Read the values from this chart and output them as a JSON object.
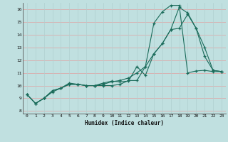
{
  "bg_color": "#c0e0e0",
  "grid_color_h": "#e0a0a0",
  "grid_color_v": "#b0d0d0",
  "line_color": "#1a6b5a",
  "xlabel": "Humidex (Indice chaleur)",
  "xlim": [
    -0.5,
    23.5
  ],
  "ylim": [
    7.8,
    16.5
  ],
  "xticks": [
    0,
    1,
    2,
    3,
    4,
    5,
    6,
    7,
    8,
    9,
    10,
    11,
    12,
    13,
    14,
    15,
    16,
    17,
    18,
    19,
    20,
    21,
    22,
    23
  ],
  "yticks": [
    8,
    9,
    10,
    11,
    12,
    13,
    14,
    15,
    16
  ],
  "line1_x": [
    0,
    1,
    2,
    3,
    4,
    5,
    6,
    7,
    8,
    9,
    10,
    11,
    12,
    13,
    14,
    15,
    16,
    17,
    18,
    19,
    20,
    21,
    22,
    23
  ],
  "line1_y": [
    9.3,
    8.6,
    9.0,
    9.6,
    9.8,
    10.1,
    10.1,
    10.0,
    10.0,
    10.2,
    10.35,
    10.3,
    10.35,
    11.5,
    10.8,
    12.5,
    13.3,
    14.4,
    16.15,
    15.7,
    14.5,
    12.3,
    11.2,
    11.1
  ],
  "line2_x": [
    0,
    1,
    2,
    3,
    4,
    5,
    6,
    7,
    8,
    9,
    10,
    11,
    12,
    13,
    14,
    15,
    16,
    17,
    18,
    19,
    20,
    21,
    22,
    23
  ],
  "line2_y": [
    9.3,
    8.6,
    9.0,
    9.6,
    9.8,
    10.2,
    10.1,
    10.0,
    10.0,
    10.0,
    10.0,
    10.1,
    10.4,
    10.4,
    11.5,
    14.9,
    15.8,
    16.3,
    16.3,
    11.0,
    11.15,
    11.2,
    11.1,
    11.1
  ],
  "line3_x": [
    0,
    1,
    2,
    3,
    4,
    5,
    6,
    7,
    8,
    9,
    10,
    11,
    12,
    13,
    14,
    15,
    16,
    17,
    18,
    19,
    20,
    21,
    22,
    23
  ],
  "line3_y": [
    9.3,
    8.6,
    9.0,
    9.5,
    9.8,
    10.1,
    10.1,
    10.0,
    10.0,
    10.1,
    10.3,
    10.4,
    10.6,
    11.0,
    11.5,
    12.5,
    13.3,
    14.4,
    14.5,
    15.6,
    14.5,
    13.0,
    11.2,
    11.1
  ]
}
